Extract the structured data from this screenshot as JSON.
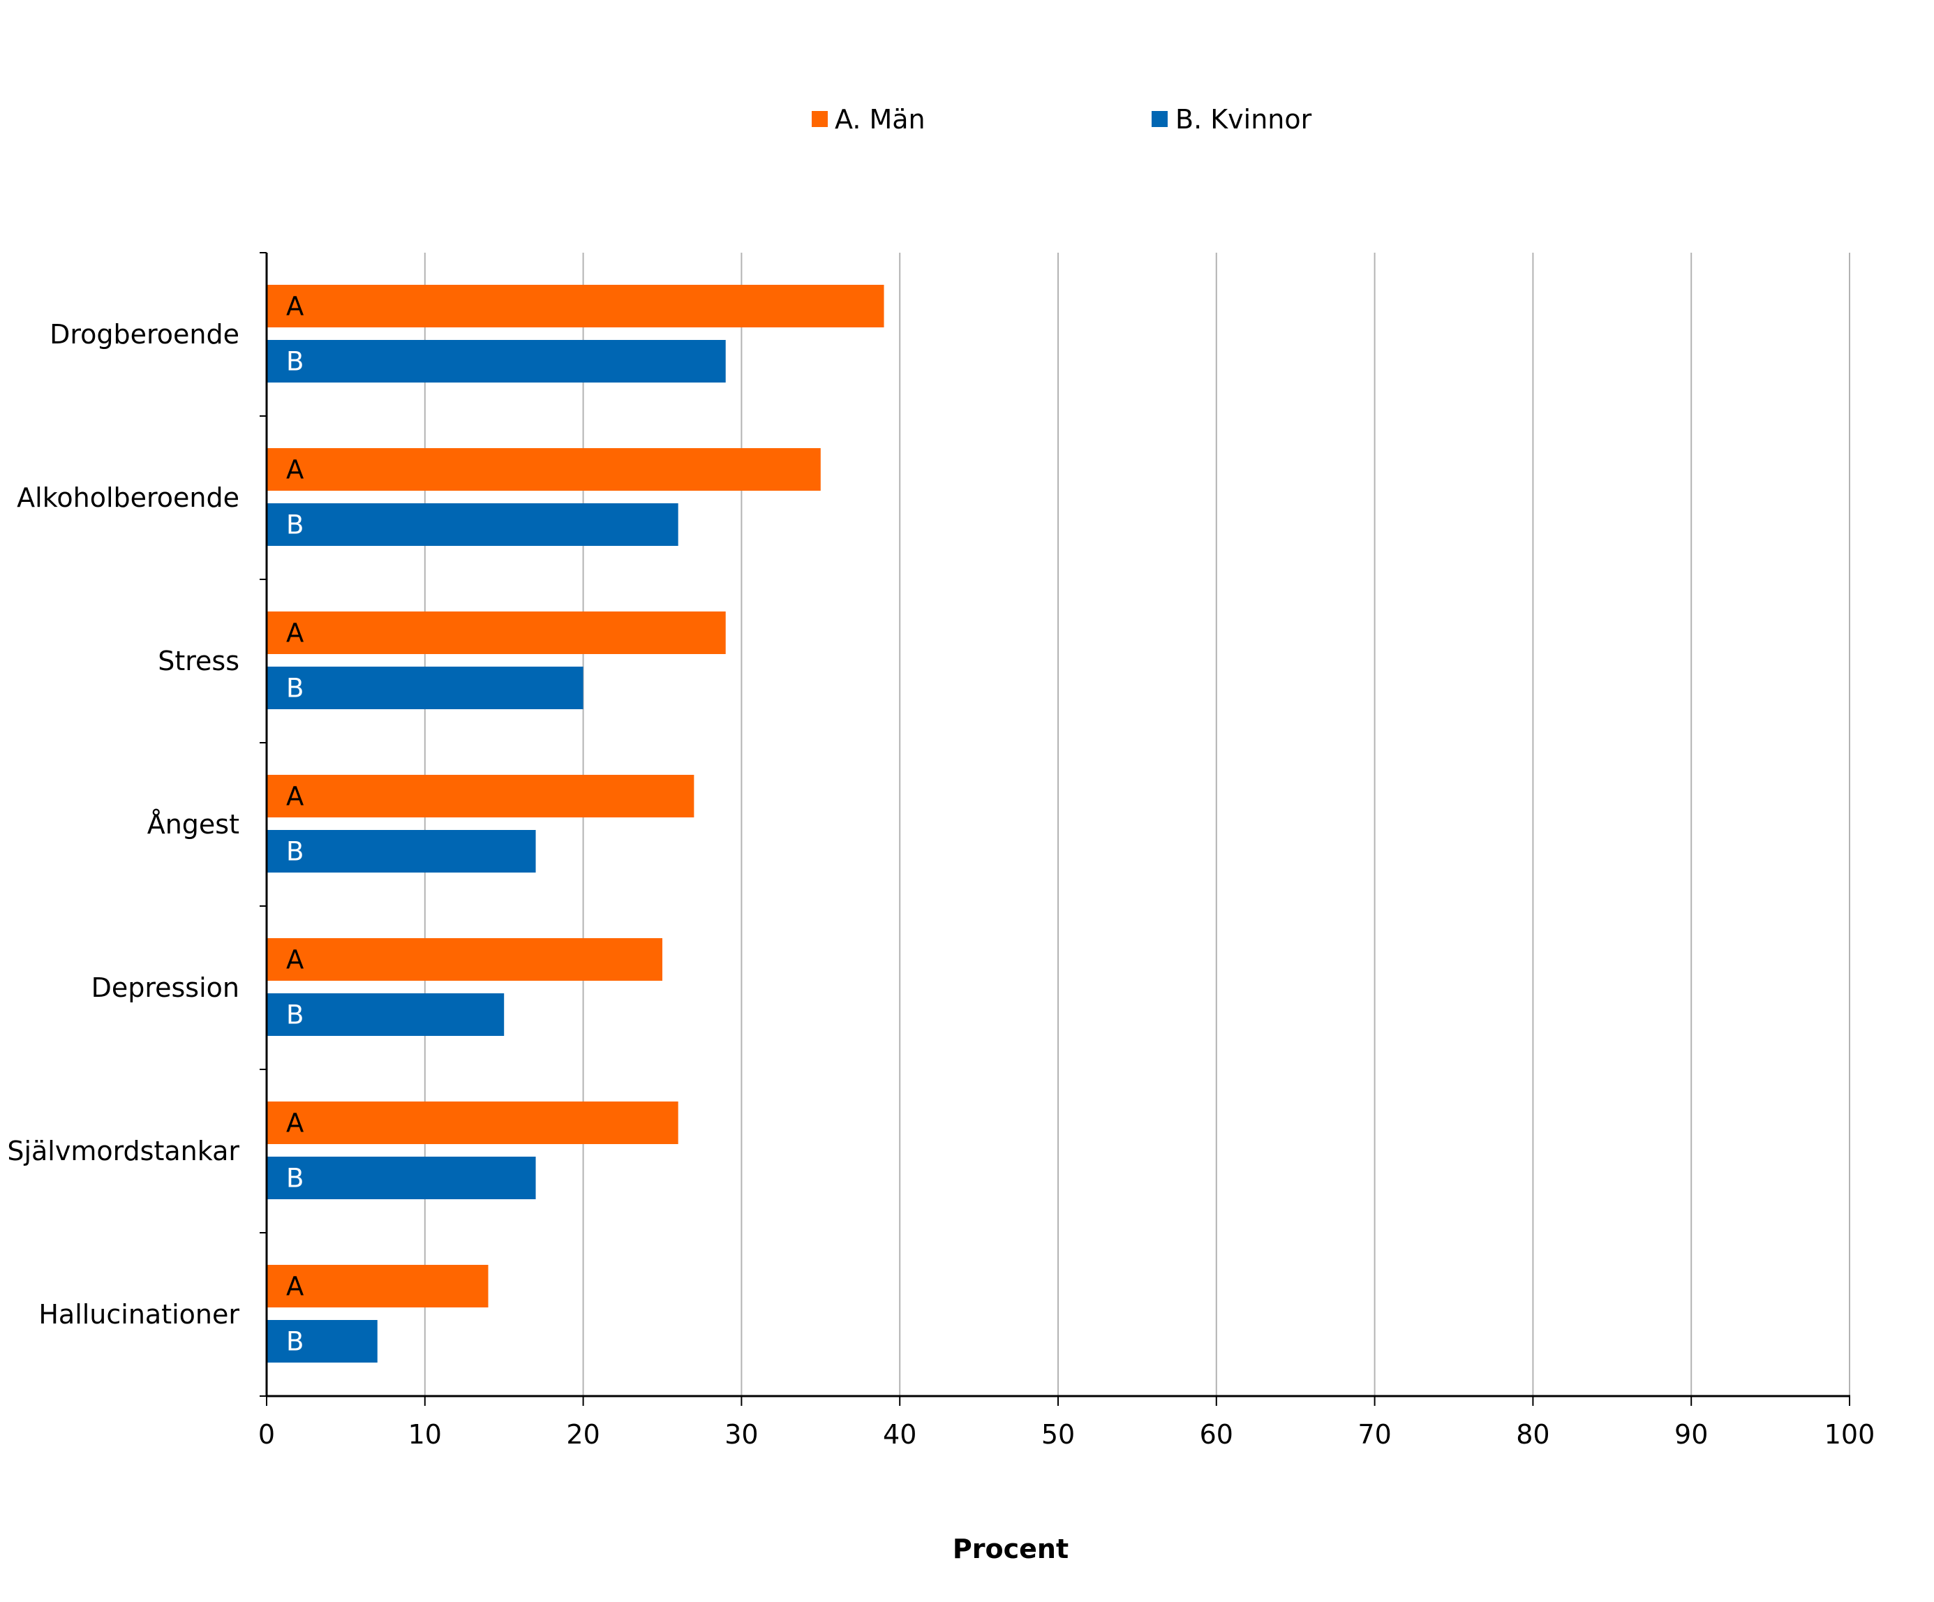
{
  "chart_data": {
    "type": "bar",
    "orientation": "horizontal",
    "categories": [
      "Drogberoende",
      "Alkoholberoende",
      "Stress",
      "Ångest",
      "Depression",
      "Självmordstankar",
      "Hallucinationer"
    ],
    "series": [
      {
        "name": "A. Män",
        "bar_label": "A",
        "color": "#ff6600",
        "label_color": "#000000",
        "values": [
          39,
          35,
          29,
          27,
          25,
          26,
          14
        ]
      },
      {
        "name": "B. Kvinnor",
        "bar_label": "B",
        "color": "#0066b3",
        "label_color": "#ffffff",
        "values": [
          29,
          26,
          20,
          17,
          15,
          17,
          7
        ]
      }
    ],
    "xlabel": "Procent",
    "ylabel": "",
    "xlim": [
      0,
      100
    ],
    "xticks": [
      0,
      10,
      20,
      30,
      40,
      50,
      60,
      70,
      80,
      90,
      100
    ],
    "grid": "vertical",
    "gridline_color": "#b3b3b3",
    "legend_position": "top"
  }
}
